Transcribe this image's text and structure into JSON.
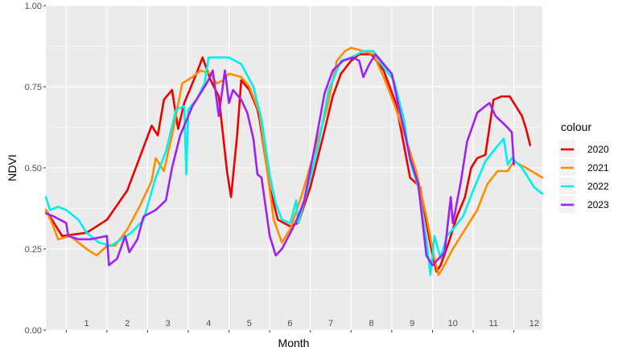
{
  "chart_data": {
    "type": "line",
    "xlabel": "Month",
    "ylabel": "NDVI",
    "ylim": [
      0,
      1
    ],
    "xlim": [
      0.5,
      12.7
    ],
    "y_ticks": [
      "0.00",
      "0.25",
      "0.50",
      "0.75",
      "1.00"
    ],
    "x_tick_labels": [
      "1",
      "2",
      "3",
      "4",
      "5",
      "6",
      "7",
      "8",
      "9",
      "10",
      "11",
      "12"
    ],
    "grid": true,
    "legend": {
      "title": "colour",
      "position": "right"
    },
    "series": [
      {
        "name": "2020",
        "color": "#ee0000",
        "points": [
          [
            0.5,
            0.37
          ],
          [
            0.9,
            0.29
          ],
          [
            1.5,
            0.3
          ],
          [
            2.0,
            0.34
          ],
          [
            2.5,
            0.43
          ],
          [
            2.8,
            0.53
          ],
          [
            3.1,
            0.63
          ],
          [
            3.25,
            0.6
          ],
          [
            3.4,
            0.71
          ],
          [
            3.6,
            0.74
          ],
          [
            3.75,
            0.62
          ],
          [
            3.9,
            0.7
          ],
          [
            4.2,
            0.79
          ],
          [
            4.35,
            0.84
          ],
          [
            4.55,
            0.77
          ],
          [
            4.75,
            0.72
          ],
          [
            4.95,
            0.49
          ],
          [
            5.05,
            0.41
          ],
          [
            5.2,
            0.6
          ],
          [
            5.3,
            0.77
          ],
          [
            5.5,
            0.74
          ],
          [
            5.7,
            0.68
          ],
          [
            5.75,
            0.65
          ],
          [
            6.0,
            0.44
          ],
          [
            6.2,
            0.34
          ],
          [
            6.35,
            0.33
          ],
          [
            6.5,
            0.32
          ],
          [
            6.7,
            0.33
          ],
          [
            7.0,
            0.44
          ],
          [
            7.3,
            0.59
          ],
          [
            7.55,
            0.72
          ],
          [
            7.75,
            0.79
          ],
          [
            8.0,
            0.83
          ],
          [
            8.2,
            0.85
          ],
          [
            8.5,
            0.85
          ],
          [
            8.8,
            0.8
          ],
          [
            9.1,
            0.7
          ],
          [
            9.3,
            0.57
          ],
          [
            9.45,
            0.47
          ],
          [
            9.7,
            0.44
          ],
          [
            9.85,
            0.33
          ],
          [
            10.0,
            0.23
          ],
          [
            10.1,
            0.18
          ],
          [
            10.2,
            0.2
          ],
          [
            10.4,
            0.27
          ],
          [
            10.6,
            0.35
          ],
          [
            10.8,
            0.41
          ],
          [
            10.95,
            0.5
          ],
          [
            11.1,
            0.53
          ],
          [
            11.3,
            0.54
          ],
          [
            11.5,
            0.71
          ],
          [
            11.7,
            0.72
          ],
          [
            11.9,
            0.72
          ],
          [
            12.0,
            0.7
          ],
          [
            12.2,
            0.66
          ],
          [
            12.3,
            0.62
          ],
          [
            12.4,
            0.57
          ]
        ]
      },
      {
        "name": "2021",
        "color": "#ff8c00",
        "points": [
          [
            0.5,
            0.37
          ],
          [
            0.65,
            0.33
          ],
          [
            0.8,
            0.28
          ],
          [
            1.1,
            0.29
          ],
          [
            1.5,
            0.25
          ],
          [
            1.75,
            0.23
          ],
          [
            2.0,
            0.26
          ],
          [
            2.2,
            0.26
          ],
          [
            2.5,
            0.31
          ],
          [
            2.8,
            0.38
          ],
          [
            3.1,
            0.46
          ],
          [
            3.2,
            0.53
          ],
          [
            3.4,
            0.49
          ],
          [
            3.6,
            0.6
          ],
          [
            3.85,
            0.76
          ],
          [
            4.1,
            0.78
          ],
          [
            4.3,
            0.8
          ],
          [
            4.55,
            0.79
          ],
          [
            4.7,
            0.76
          ],
          [
            4.85,
            0.77
          ],
          [
            5.0,
            0.79
          ],
          [
            5.3,
            0.78
          ],
          [
            5.5,
            0.75
          ],
          [
            5.75,
            0.67
          ],
          [
            5.95,
            0.48
          ],
          [
            6.1,
            0.34
          ],
          [
            6.3,
            0.27
          ],
          [
            6.5,
            0.31
          ],
          [
            6.8,
            0.42
          ],
          [
            7.1,
            0.55
          ],
          [
            7.4,
            0.68
          ],
          [
            7.65,
            0.83
          ],
          [
            7.85,
            0.86
          ],
          [
            8.0,
            0.87
          ],
          [
            8.3,
            0.86
          ],
          [
            8.55,
            0.85
          ],
          [
            8.8,
            0.78
          ],
          [
            9.05,
            0.7
          ],
          [
            9.3,
            0.61
          ],
          [
            9.6,
            0.49
          ],
          [
            9.85,
            0.35
          ],
          [
            10.05,
            0.22
          ],
          [
            10.15,
            0.17
          ],
          [
            10.25,
            0.19
          ],
          [
            10.5,
            0.25
          ],
          [
            10.8,
            0.31
          ],
          [
            11.1,
            0.37
          ],
          [
            11.35,
            0.45
          ],
          [
            11.6,
            0.49
          ],
          [
            11.85,
            0.49
          ],
          [
            12.0,
            0.52
          ],
          [
            12.3,
            0.5
          ],
          [
            12.7,
            0.47
          ]
        ]
      },
      {
        "name": "2022",
        "color": "#00eeee",
        "points": [
          [
            0.5,
            0.41
          ],
          [
            0.6,
            0.37
          ],
          [
            0.8,
            0.38
          ],
          [
            1.0,
            0.37
          ],
          [
            1.3,
            0.34
          ],
          [
            1.5,
            0.3
          ],
          [
            1.8,
            0.27
          ],
          [
            2.1,
            0.26
          ],
          [
            2.35,
            0.28
          ],
          [
            2.6,
            0.3
          ],
          [
            2.9,
            0.34
          ],
          [
            3.2,
            0.47
          ],
          [
            3.45,
            0.55
          ],
          [
            3.7,
            0.68
          ],
          [
            3.9,
            0.69
          ],
          [
            3.95,
            0.48
          ],
          [
            4.0,
            0.68
          ],
          [
            4.2,
            0.71
          ],
          [
            4.4,
            0.76
          ],
          [
            4.5,
            0.84
          ],
          [
            4.8,
            0.84
          ],
          [
            5.0,
            0.84
          ],
          [
            5.3,
            0.82
          ],
          [
            5.6,
            0.75
          ],
          [
            5.8,
            0.65
          ],
          [
            6.0,
            0.48
          ],
          [
            6.15,
            0.39
          ],
          [
            6.3,
            0.34
          ],
          [
            6.5,
            0.33
          ],
          [
            6.55,
            0.35
          ],
          [
            6.65,
            0.4
          ],
          [
            6.7,
            0.33
          ],
          [
            6.9,
            0.42
          ],
          [
            7.2,
            0.57
          ],
          [
            7.45,
            0.74
          ],
          [
            7.75,
            0.83
          ],
          [
            8.0,
            0.84
          ],
          [
            8.3,
            0.86
          ],
          [
            8.55,
            0.86
          ],
          [
            8.8,
            0.81
          ],
          [
            9.05,
            0.77
          ],
          [
            9.3,
            0.65
          ],
          [
            9.45,
            0.52
          ],
          [
            9.65,
            0.44
          ],
          [
            9.85,
            0.28
          ],
          [
            9.95,
            0.17
          ],
          [
            10.05,
            0.29
          ],
          [
            10.2,
            0.22
          ],
          [
            10.35,
            0.29
          ],
          [
            10.5,
            0.31
          ],
          [
            10.75,
            0.35
          ],
          [
            11.0,
            0.43
          ],
          [
            11.3,
            0.52
          ],
          [
            11.55,
            0.56
          ],
          [
            11.75,
            0.59
          ],
          [
            11.85,
            0.51
          ],
          [
            11.95,
            0.53
          ],
          [
            12.2,
            0.5
          ],
          [
            12.35,
            0.47
          ],
          [
            12.5,
            0.44
          ],
          [
            12.7,
            0.42
          ]
        ]
      },
      {
        "name": "2023",
        "color": "#a020f0",
        "points": [
          [
            0.5,
            0.36
          ],
          [
            0.7,
            0.35
          ],
          [
            1.0,
            0.33
          ],
          [
            1.05,
            0.29
          ],
          [
            1.3,
            0.28
          ],
          [
            1.6,
            0.28
          ],
          [
            2.0,
            0.29
          ],
          [
            2.05,
            0.2
          ],
          [
            2.25,
            0.22
          ],
          [
            2.45,
            0.29
          ],
          [
            2.55,
            0.24
          ],
          [
            2.75,
            0.28
          ],
          [
            2.9,
            0.35
          ],
          [
            3.2,
            0.37
          ],
          [
            3.45,
            0.4
          ],
          [
            3.6,
            0.5
          ],
          [
            3.8,
            0.6
          ],
          [
            4.1,
            0.69
          ],
          [
            4.3,
            0.73
          ],
          [
            4.45,
            0.76
          ],
          [
            4.6,
            0.8
          ],
          [
            4.75,
            0.66
          ],
          [
            4.9,
            0.8
          ],
          [
            5.0,
            0.7
          ],
          [
            5.1,
            0.74
          ],
          [
            5.3,
            0.71
          ],
          [
            5.45,
            0.67
          ],
          [
            5.6,
            0.59
          ],
          [
            5.7,
            0.48
          ],
          [
            5.8,
            0.47
          ],
          [
            6.0,
            0.29
          ],
          [
            6.15,
            0.23
          ],
          [
            6.3,
            0.25
          ],
          [
            6.55,
            0.31
          ],
          [
            6.7,
            0.35
          ],
          [
            6.85,
            0.4
          ],
          [
            7.1,
            0.56
          ],
          [
            7.35,
            0.73
          ],
          [
            7.55,
            0.8
          ],
          [
            7.8,
            0.83
          ],
          [
            8.05,
            0.84
          ],
          [
            8.2,
            0.83
          ],
          [
            8.3,
            0.78
          ],
          [
            8.45,
            0.82
          ],
          [
            8.6,
            0.85
          ],
          [
            8.8,
            0.82
          ],
          [
            9.0,
            0.79
          ],
          [
            9.15,
            0.7
          ],
          [
            9.3,
            0.62
          ],
          [
            9.45,
            0.53
          ],
          [
            9.65,
            0.45
          ],
          [
            9.85,
            0.23
          ],
          [
            10.0,
            0.2
          ],
          [
            10.15,
            0.22
          ],
          [
            10.3,
            0.24
          ],
          [
            10.45,
            0.41
          ],
          [
            10.5,
            0.33
          ],
          [
            10.55,
            0.36
          ],
          [
            10.7,
            0.46
          ],
          [
            10.85,
            0.58
          ],
          [
            11.1,
            0.67
          ],
          [
            11.3,
            0.69
          ],
          [
            11.4,
            0.7
          ],
          [
            11.55,
            0.66
          ],
          [
            11.8,
            0.63
          ],
          [
            11.95,
            0.61
          ],
          [
            12.0,
            0.51
          ]
        ]
      }
    ]
  }
}
